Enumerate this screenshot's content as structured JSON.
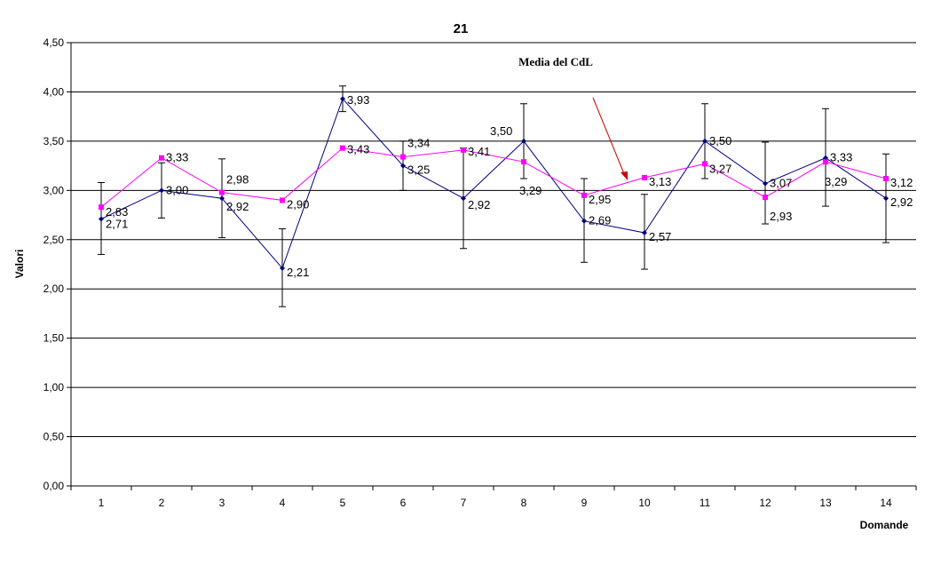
{
  "chart_data": {
    "type": "line",
    "title": "21",
    "xlabel": "Domande",
    "ylabel": "Valori",
    "ylim": [
      0,
      4.5
    ],
    "yticks": [
      "0,00",
      "0,50",
      "1,00",
      "1,50",
      "2,00",
      "2,50",
      "3,00",
      "3,50",
      "4,00",
      "4,50"
    ],
    "categories": [
      "1",
      "2",
      "3",
      "4",
      "5",
      "6",
      "7",
      "8",
      "9",
      "10",
      "11",
      "12",
      "13",
      "14"
    ],
    "grid": "horizontal",
    "annotation": "Media del CdL",
    "series": [
      {
        "color": "#000080",
        "marker": "diamond",
        "values": [
          2.71,
          3.0,
          2.92,
          2.21,
          3.93,
          3.25,
          2.92,
          3.5,
          2.69,
          2.57,
          3.5,
          3.07,
          3.33,
          2.92
        ],
        "labels": [
          "2,71",
          "3,00",
          "2,92",
          "2,21",
          "3,93",
          "3,25",
          "2,92",
          "3,50",
          "2,69",
          "2,57",
          "3,50",
          "3,07",
          "3,33",
          "2,92"
        ],
        "error_low": [
          2.35,
          2.72,
          2.52,
          1.82,
          3.8,
          3.0,
          2.41,
          3.12,
          2.27,
          2.2,
          3.12,
          2.66,
          2.84,
          2.47
        ],
        "error_high": [
          3.08,
          3.28,
          3.32,
          2.61,
          4.06,
          3.5,
          3.43,
          3.88,
          3.12,
          2.96,
          3.88,
          3.49,
          3.83,
          3.37
        ]
      },
      {
        "name": "Media del CdL",
        "color": "#FF00FF",
        "marker": "square",
        "values": [
          2.83,
          3.33,
          2.98,
          2.9,
          3.43,
          3.34,
          3.41,
          3.29,
          2.95,
          3.13,
          3.27,
          2.93,
          3.29,
          3.12
        ],
        "labels": [
          "2,83",
          "3,33",
          "2,98",
          "2,90",
          "3,43",
          "3,34",
          "3,41",
          "3,29",
          "2,95",
          "3,13",
          "3,27",
          "2,93",
          "3,29",
          "3,12"
        ]
      }
    ]
  }
}
